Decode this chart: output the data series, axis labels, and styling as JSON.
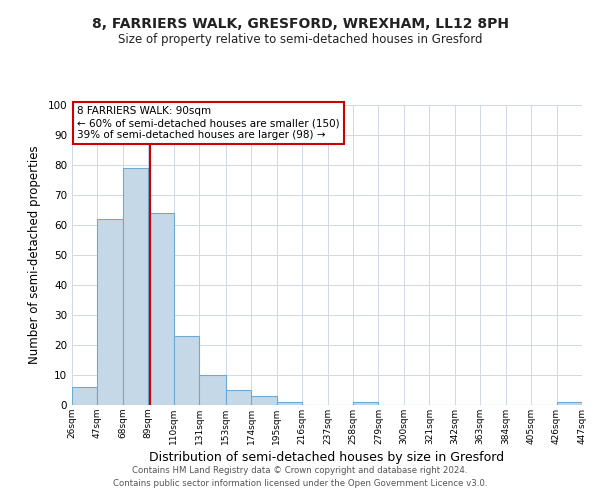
{
  "title": "8, FARRIERS WALK, GRESFORD, WREXHAM, LL12 8PH",
  "subtitle": "Size of property relative to semi-detached houses in Gresford",
  "xlabel": "Distribution of semi-detached houses by size in Gresford",
  "ylabel": "Number of semi-detached properties",
  "bin_edges": [
    26,
    47,
    68,
    89,
    110,
    131,
    153,
    174,
    195,
    216,
    237,
    258,
    279,
    300,
    321,
    342,
    363,
    384,
    405,
    426,
    447
  ],
  "counts": [
    6,
    62,
    79,
    64,
    23,
    10,
    5,
    3,
    1,
    0,
    0,
    1,
    0,
    0,
    0,
    0,
    0,
    0,
    0,
    1
  ],
  "bar_color": "#c5d8e8",
  "bar_edge_color": "#6aaad4",
  "property_size": 90,
  "property_line_color": "#cc0000",
  "annotation_title": "8 FARRIERS WALK: 90sqm",
  "annotation_line1": "← 60% of semi-detached houses are smaller (150)",
  "annotation_line2": "39% of semi-detached houses are larger (98) →",
  "annotation_box_edge": "#cc0000",
  "ylim": [
    0,
    100
  ],
  "yticks": [
    0,
    10,
    20,
    30,
    40,
    50,
    60,
    70,
    80,
    90,
    100
  ],
  "tick_labels": [
    "26sqm",
    "47sqm",
    "68sqm",
    "89sqm",
    "110sqm",
    "131sqm",
    "153sqm",
    "174sqm",
    "195sqm",
    "216sqm",
    "237sqm",
    "258sqm",
    "279sqm",
    "300sqm",
    "321sqm",
    "342sqm",
    "363sqm",
    "384sqm",
    "405sqm",
    "426sqm",
    "447sqm"
  ],
  "footer_line1": "Contains HM Land Registry data © Crown copyright and database right 2024.",
  "footer_line2": "Contains public sector information licensed under the Open Government Licence v3.0.",
  "background_color": "#ffffff",
  "grid_color": "#d0d8e8"
}
